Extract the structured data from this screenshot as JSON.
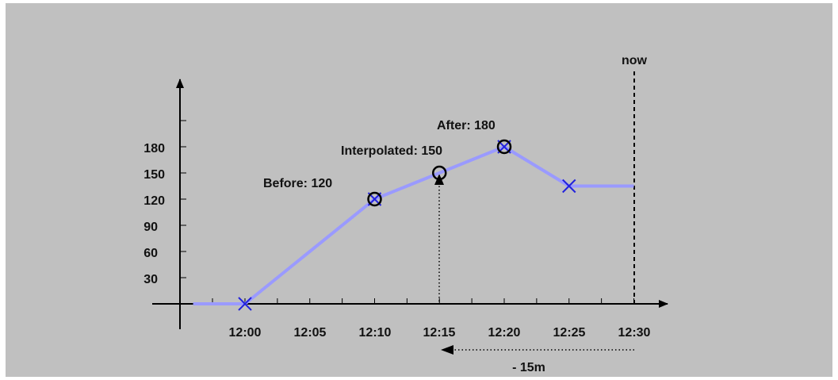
{
  "chart_data": {
    "type": "line",
    "x": [
      "11:56",
      "12:00",
      "12:10",
      "12:15",
      "12:20",
      "12:25",
      "12:30"
    ],
    "x_ticks": [
      "12:00",
      "12:05",
      "12:10",
      "12:15",
      "12:20",
      "12:25",
      "12:30"
    ],
    "y_ticks": [
      30,
      60,
      90,
      120,
      150,
      180
    ],
    "values": [
      0,
      0,
      120,
      150,
      180,
      135,
      135
    ],
    "samples": [
      {
        "x": "12:00",
        "y": 0
      },
      {
        "x": "12:10",
        "y": 120
      },
      {
        "x": "12:20",
        "y": 180
      },
      {
        "x": "12:25",
        "y": 135
      }
    ],
    "annotations": {
      "before": {
        "x": "12:10",
        "y": 120,
        "label": "Before: 120"
      },
      "interpolated": {
        "x": "12:15",
        "y": 150,
        "label": "Interpolated: 150"
      },
      "after": {
        "x": "12:20",
        "y": 180,
        "label": "After: 180"
      }
    },
    "now_label": "now",
    "offset_label": "- 15m",
    "colors": {
      "line": "#9a9aff",
      "marker": "#2222dd",
      "axis": "#000000",
      "background": "#c0c0c0"
    }
  }
}
